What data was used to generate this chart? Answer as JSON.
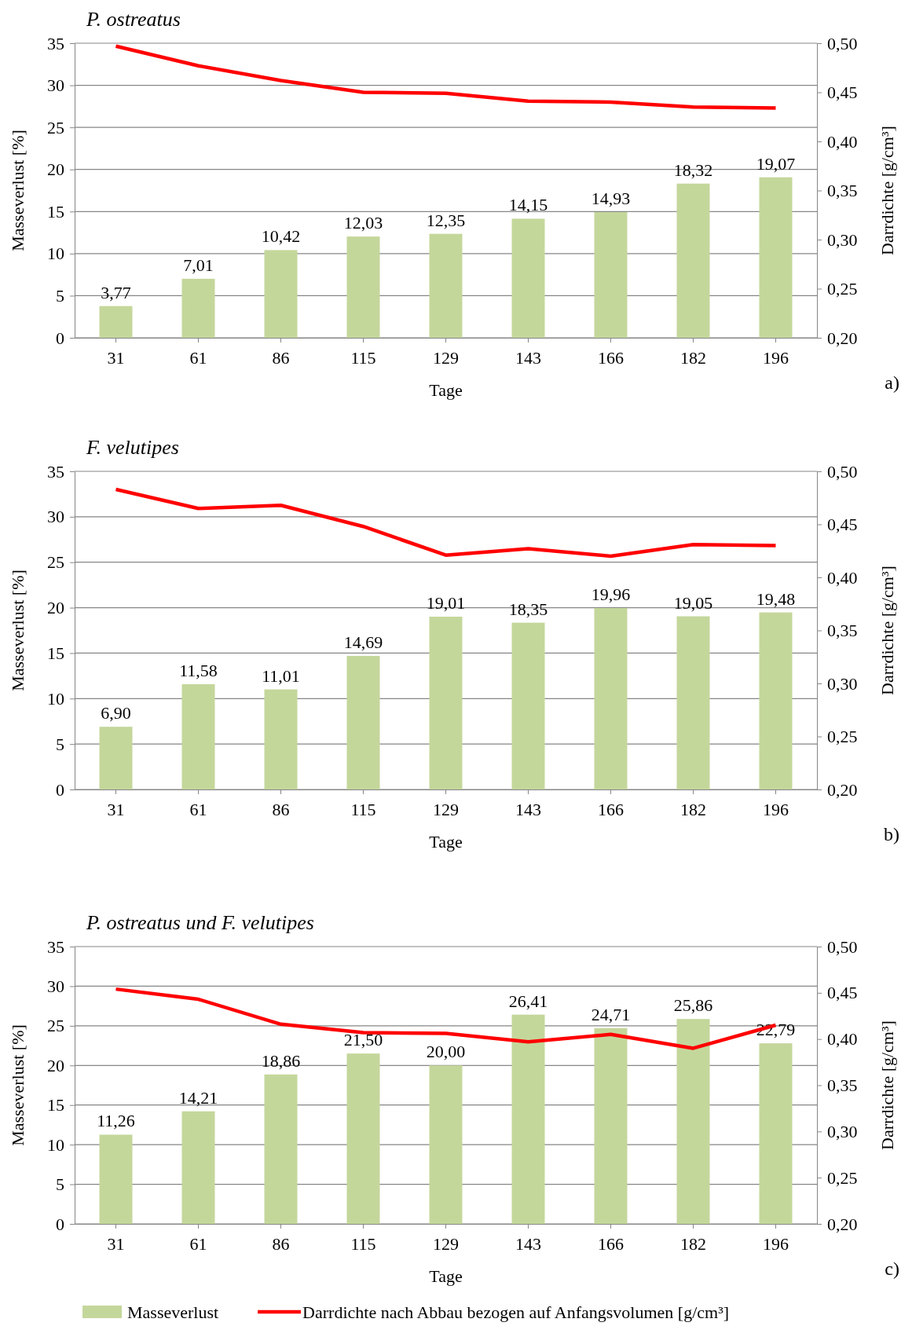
{
  "chart_data": [
    {
      "type": "bar",
      "title": "P. ostreatus",
      "xlabel": "Tage",
      "ylabel": "Masseverlust [%]",
      "y2label": "Darrdichte [g/cm³]",
      "annotations": [
        "a)"
      ],
      "categories": [
        "31",
        "61",
        "86",
        "115",
        "129",
        "143",
        "166",
        "182",
        "196"
      ],
      "series": [
        {
          "color": "#c4d79b",
          "values": [
            3.77,
            7.01,
            10.42,
            12.03,
            12.35,
            14.15,
            14.93,
            18.32,
            19.07
          ],
          "value_labels": [
            "3,77",
            "7,01",
            "10,42",
            "12,03",
            "12,35",
            "14,15",
            "14,93",
            "18,32",
            "19,07"
          ]
        },
        {
          "type": "line",
          "axis": "y2",
          "color": "#ff0000",
          "values": [
            0.497,
            0.477,
            0.462,
            0.45,
            0.449,
            0.441,
            0.44,
            0.435,
            0.434
          ]
        }
      ],
      "ylim": [
        0,
        35
      ],
      "yticks": [
        0,
        5,
        10,
        15,
        20,
        25,
        30,
        35
      ],
      "y2lim": [
        0.2,
        0.5
      ],
      "y2ticks": [
        {
          "value": 0.2,
          "label": "0,20"
        },
        {
          "value": 0.25,
          "label": "0,25"
        },
        {
          "value": 0.3,
          "label": "0,30"
        },
        {
          "value": 0.35,
          "label": "0,35"
        },
        {
          "value": 0.4,
          "label": "0,40"
        },
        {
          "value": 0.45,
          "label": "0,45"
        },
        {
          "value": 0.5,
          "label": "0,50"
        }
      ],
      "grid": "y",
      "legend": false,
      "marker": "none"
    },
    {
      "type": "bar",
      "title": "F. velutipes",
      "xlabel": "Tage",
      "ylabel": "Masseverlust [%]",
      "y2label": "Darrdichte [g/cm³]",
      "annotations": [
        "b)"
      ],
      "categories": [
        "31",
        "61",
        "86",
        "115",
        "129",
        "143",
        "166",
        "182",
        "196"
      ],
      "series": [
        {
          "color": "#c4d79b",
          "values": [
            6.9,
            11.58,
            11.01,
            14.69,
            19.01,
            18.35,
            19.96,
            19.05,
            19.48
          ],
          "value_labels": [
            "6,90",
            "11,58",
            "11,01",
            "14,69",
            "19,01",
            "18,35",
            "19,96",
            "19,05",
            "19,48"
          ]
        },
        {
          "type": "line",
          "axis": "y2",
          "color": "#ff0000",
          "values": [
            0.483,
            0.465,
            0.468,
            0.448,
            0.421,
            0.427,
            0.42,
            0.431,
            0.43
          ]
        }
      ],
      "ylim": [
        0,
        35
      ],
      "yticks": [
        0,
        5,
        10,
        15,
        20,
        25,
        30,
        35
      ],
      "y2lim": [
        0.2,
        0.5
      ],
      "y2ticks": [
        {
          "value": 0.2,
          "label": "0,20"
        },
        {
          "value": 0.25,
          "label": "0,25"
        },
        {
          "value": 0.3,
          "label": "0,30"
        },
        {
          "value": 0.35,
          "label": "0,35"
        },
        {
          "value": 0.4,
          "label": "0,40"
        },
        {
          "value": 0.45,
          "label": "0,45"
        },
        {
          "value": 0.5,
          "label": "0,50"
        }
      ],
      "grid": "y",
      "legend": false,
      "marker": "none"
    },
    {
      "type": "bar",
      "title": "P. ostreatus und F. velutipes",
      "xlabel": "Tage",
      "ylabel": "Masseverlust [%]",
      "y2label": "Darrdichte [g/cm³]",
      "annotations": [
        "c)"
      ],
      "categories": [
        "31",
        "61",
        "86",
        "115",
        "129",
        "143",
        "166",
        "182",
        "196"
      ],
      "series": [
        {
          "name": "Masseverlust",
          "color": "#c4d79b",
          "values": [
            11.26,
            14.21,
            18.86,
            21.5,
            20.0,
            26.41,
            24.71,
            25.86,
            22.79
          ],
          "value_labels": [
            "11,26",
            "14,21",
            "18,86",
            "21,50",
            "20,00",
            "26,41",
            "24,71",
            "25,86",
            "22,79"
          ]
        },
        {
          "name": "Darrdichte nach Abbau bezogen auf  Anfangsvolumen [g/cm³]",
          "type": "line",
          "axis": "y2",
          "color": "#ff0000",
          "values": [
            0.454,
            0.443,
            0.416,
            0.407,
            0.406,
            0.397,
            0.405,
            0.39,
            0.415
          ]
        }
      ],
      "ylim": [
        0,
        35
      ],
      "yticks": [
        0,
        5,
        10,
        15,
        20,
        25,
        30,
        35
      ],
      "y2lim": [
        0.2,
        0.5
      ],
      "y2ticks": [
        {
          "value": 0.2,
          "label": "0,20"
        },
        {
          "value": 0.25,
          "label": "0,25"
        },
        {
          "value": 0.3,
          "label": "0,30"
        },
        {
          "value": 0.35,
          "label": "0,35"
        },
        {
          "value": 0.4,
          "label": "0,40"
        },
        {
          "value": 0.45,
          "label": "0,45"
        },
        {
          "value": 0.5,
          "label": "0,50"
        }
      ],
      "grid": "y",
      "legend": "bottom",
      "marker": "none"
    }
  ]
}
